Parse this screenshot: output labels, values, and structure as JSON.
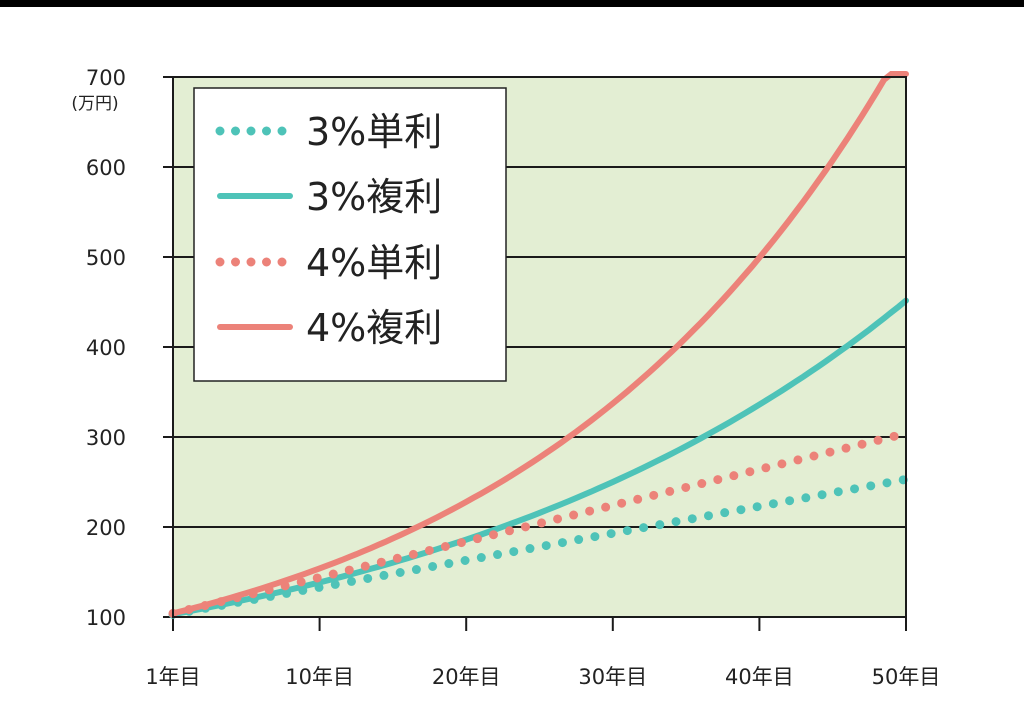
{
  "chart_data": {
    "type": "line",
    "ylabel": "(万円)",
    "ylim": [
      100,
      700
    ],
    "yticks": [
      "100",
      "200",
      "300",
      "400",
      "500",
      "600",
      "700"
    ],
    "xticks": [
      "1年目",
      "10年目",
      "20年目",
      "30年目",
      "40年目",
      "50年目"
    ],
    "xlim": [
      0,
      50
    ],
    "grid": "horizontal",
    "legend_position": "top-left",
    "background_color": "#e3eed3",
    "series": [
      {
        "name": "3%単利",
        "style": "dotted",
        "color": "#4ec3b8",
        "rate": 0.03,
        "kind": "simple",
        "x": [
          0,
          10,
          20,
          30,
          40,
          50
        ],
        "values": [
          103,
          130,
          160,
          190,
          220,
          250
        ]
      },
      {
        "name": "3%複利",
        "style": "solid",
        "color": "#4ec3b8",
        "rate": 0.03,
        "kind": "compound",
        "x": [
          0,
          10,
          20,
          30,
          40,
          50
        ],
        "values": [
          103,
          134,
          181,
          243,
          326,
          438
        ]
      },
      {
        "name": "4%単利",
        "style": "dotted",
        "color": "#ec8279",
        "rate": 0.04,
        "kind": "simple",
        "x": [
          0,
          10,
          20,
          30,
          40,
          50
        ],
        "values": [
          104,
          140,
          180,
          220,
          260,
          300
        ]
      },
      {
        "name": "4%複利",
        "style": "solid",
        "color": "#ec8279",
        "rate": 0.04,
        "kind": "compound",
        "x": [
          0,
          10,
          20,
          30,
          40,
          50
        ],
        "values": [
          104,
          148,
          219,
          324,
          480,
          711
        ]
      }
    ]
  }
}
